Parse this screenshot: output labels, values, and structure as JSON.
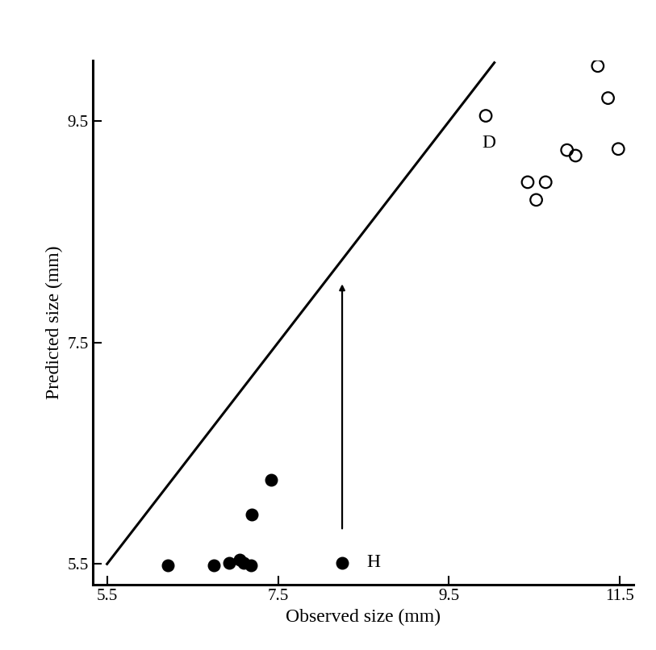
{
  "chart_data": {
    "type": "scatter",
    "x_label": "Observed size (mm)",
    "y_label": "Predicted size (mm)",
    "xlim": [
      5.33,
      11.66
    ],
    "ylim": [
      5.31,
      10.05
    ],
    "xticks": [
      5.5,
      7.5,
      9.5,
      11.5
    ],
    "yticks": [
      5.5,
      7.5,
      9.5
    ],
    "grid": false,
    "series": [
      {
        "type": "line",
        "color": "#000000",
        "line_style": "solid",
        "x": [
          5.5,
          10.03
        ],
        "values": [
          5.5,
          10.03
        ]
      },
      {
        "type": "scatter",
        "color": "#000000",
        "marker": "filled_circle",
        "x": [
          6.21,
          6.75,
          6.93,
          7.05,
          7.1,
          7.18,
          7.19,
          7.42,
          8.25
        ],
        "values": [
          5.49,
          5.49,
          5.51,
          5.54,
          5.51,
          5.49,
          5.95,
          6.26,
          5.51
        ]
      },
      {
        "type": "scatter",
        "color": "#000000",
        "marker": "open_circle",
        "x": [
          9.93,
          11.24,
          11.36,
          11.48,
          10.88,
          10.98,
          10.42,
          10.63,
          10.52
        ],
        "values": [
          9.55,
          10.0,
          9.71,
          9.25,
          9.24,
          9.19,
          8.95,
          8.95,
          8.79
        ]
      }
    ],
    "annotations": [
      {
        "text": "D",
        "x": 9.89,
        "y": 9.3
      },
      {
        "text": "H",
        "x": 8.54,
        "y": 5.51
      }
    ],
    "arrow": {
      "x": 8.25,
      "y_start": 5.8,
      "y_end": 8.05
    }
  }
}
